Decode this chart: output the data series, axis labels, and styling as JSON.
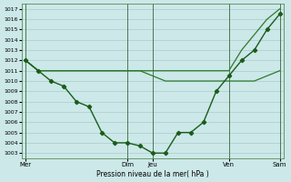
{
  "xlabel": "Pression niveau de la mer( hPa )",
  "background_color": "#cce8e8",
  "grid_color": "#aacccc",
  "line_color_dark": "#1a5c1a",
  "line_color_med": "#2d7a2d",
  "ylim": [
    1002.5,
    1017.5
  ],
  "yticks": [
    1003,
    1004,
    1005,
    1006,
    1007,
    1008,
    1009,
    1010,
    1011,
    1012,
    1013,
    1014,
    1015,
    1016,
    1017
  ],
  "day_labels": [
    "Mer",
    "Dim",
    "Jeu",
    "Ven",
    "Sam"
  ],
  "day_positions": [
    0,
    8,
    10,
    16,
    20
  ],
  "xlim": [
    -0.3,
    20.3
  ],
  "x_main": [
    0,
    1,
    2,
    3,
    4,
    5,
    6,
    7,
    8,
    9,
    10,
    11,
    12,
    13,
    14,
    15,
    16,
    17,
    18,
    19,
    20
  ],
  "y_main": [
    1012,
    1011,
    1010,
    1009.5,
    1008,
    1007.5,
    1005,
    1004,
    1004,
    1003.7,
    1003,
    1003,
    1005,
    1005,
    1006,
    1009,
    1010.5,
    1012,
    1013,
    1015,
    1016.5
  ],
  "x_upper": [
    0,
    1,
    2,
    3,
    4,
    5,
    6,
    7,
    8,
    9,
    10,
    11,
    12,
    13,
    14,
    15,
    16,
    17,
    18,
    19,
    20
  ],
  "y_upper": [
    1012,
    1011,
    1011,
    1011,
    1011,
    1011,
    1011,
    1011,
    1011,
    1011,
    1011,
    1011,
    1011,
    1011,
    1011,
    1011,
    1011,
    1013,
    1014.5,
    1016,
    1017
  ],
  "x_lower": [
    0,
    1,
    2,
    3,
    4,
    5,
    6,
    7,
    8,
    9,
    10,
    11,
    12,
    13,
    14,
    15,
    16,
    17,
    18,
    19,
    20
  ],
  "y_lower": [
    1012,
    1011,
    1011,
    1011,
    1011,
    1011,
    1011,
    1011,
    1011,
    1011,
    1010.5,
    1010,
    1010,
    1010,
    1010,
    1010,
    1010,
    1010,
    1010,
    1010.5,
    1011
  ]
}
